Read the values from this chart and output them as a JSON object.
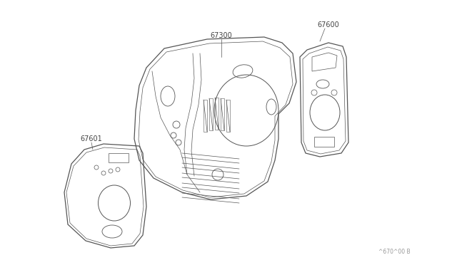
{
  "bg_color": "#ffffff",
  "line_color": "#555555",
  "label_color": "#444444",
  "ref_text": "^670^00 B",
  "fig_width": 6.4,
  "fig_height": 3.72,
  "dpi": 100
}
